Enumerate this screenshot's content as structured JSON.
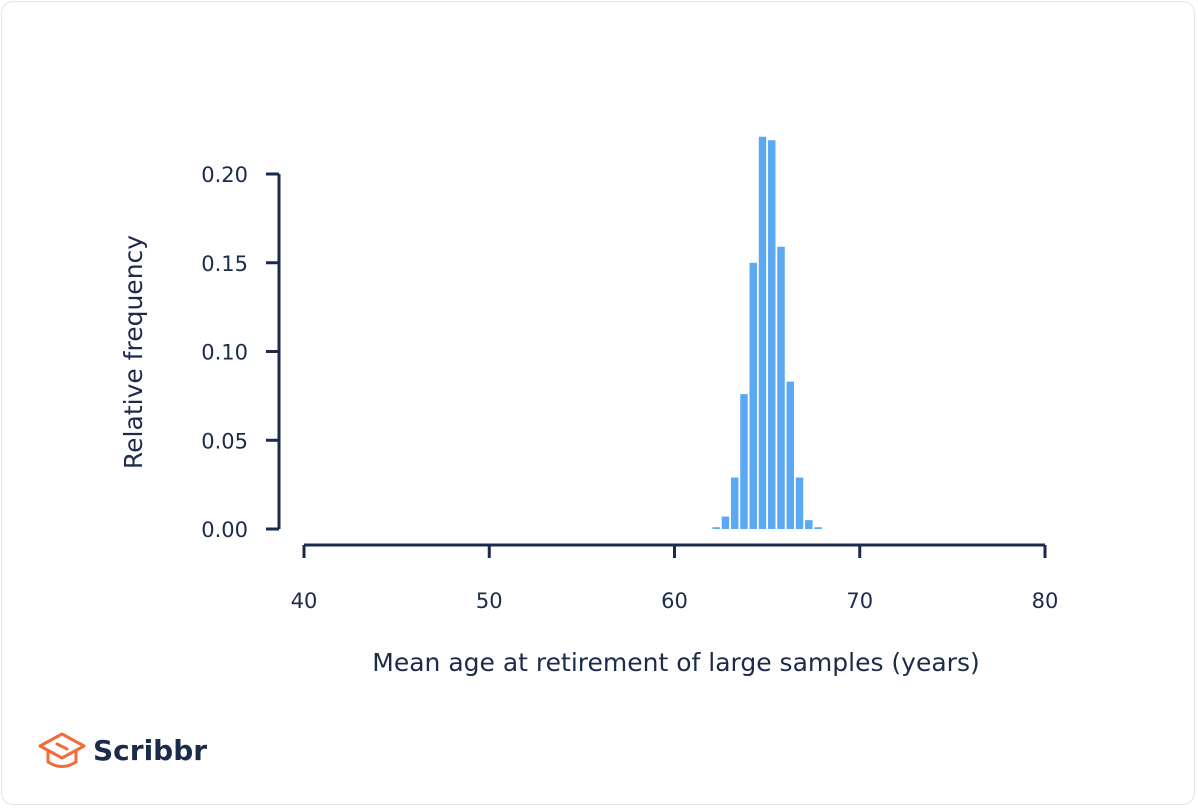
{
  "brand": {
    "name": "Scribbr",
    "accent_color": "#f26b3a"
  },
  "colors": {
    "bar": "#5aa9f2",
    "axis": "#1b2b4b",
    "text": "#1b2b4b"
  },
  "chart_data": {
    "type": "bar",
    "title": "",
    "xlabel": "Mean age at retirement of large samples (years)",
    "ylabel": "Relative frequency",
    "xlim": [
      40,
      80
    ],
    "ylim": [
      0,
      0.2
    ],
    "x_ticks": [
      40,
      50,
      60,
      70,
      80
    ],
    "x_tick_labels": [
      "40",
      "50",
      "60",
      "70",
      "80"
    ],
    "y_ticks": [
      0,
      0.05,
      0.1,
      0.15,
      0.2
    ],
    "y_tick_labels": [
      "0.00",
      "0.05",
      "0.10",
      "0.15",
      "0.20"
    ],
    "bin_width": 0.5,
    "bins": [
      {
        "x0": 62.0,
        "value": 0.001
      },
      {
        "x0": 62.5,
        "value": 0.007
      },
      {
        "x0": 63.0,
        "value": 0.029
      },
      {
        "x0": 63.5,
        "value": 0.076
      },
      {
        "x0": 64.0,
        "value": 0.15
      },
      {
        "x0": 64.5,
        "value": 0.221
      },
      {
        "x0": 65.0,
        "value": 0.219
      },
      {
        "x0": 65.5,
        "value": 0.159
      },
      {
        "x0": 66.0,
        "value": 0.083
      },
      {
        "x0": 66.5,
        "value": 0.029
      },
      {
        "x0": 67.0,
        "value": 0.005
      },
      {
        "x0": 67.5,
        "value": 0.001
      }
    ],
    "grid": false,
    "legend": "none"
  }
}
